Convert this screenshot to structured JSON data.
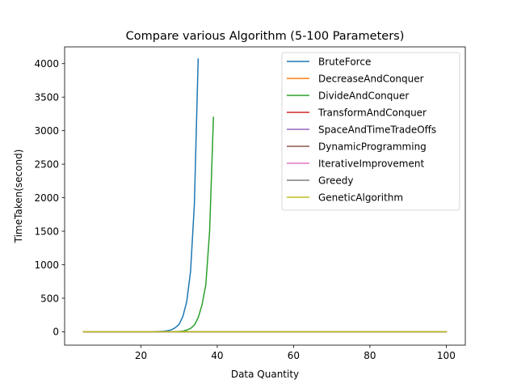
{
  "chart_data": {
    "type": "line",
    "title": "Compare various Algorithm (5-100 Parameters)",
    "xlabel": "Data Quantity",
    "ylabel": "TimeTaken(second)",
    "xlim": [
      0,
      105
    ],
    "ylim": [
      -200,
      4250
    ],
    "xticks": [
      20,
      40,
      60,
      80,
      100
    ],
    "yticks": [
      0,
      500,
      1000,
      1500,
      2000,
      2500,
      3000,
      3500,
      4000
    ],
    "grid": false,
    "legend_position": "upper right",
    "series": [
      {
        "name": "BruteForce",
        "color": "#1f77b4",
        "points": [
          [
            5,
            0
          ],
          [
            10,
            0
          ],
          [
            15,
            0
          ],
          [
            20,
            0
          ],
          [
            22,
            1
          ],
          [
            24,
            3
          ],
          [
            25,
            5
          ],
          [
            26,
            8
          ],
          [
            27,
            15
          ],
          [
            28,
            30
          ],
          [
            29,
            60
          ],
          [
            30,
            110
          ],
          [
            31,
            230
          ],
          [
            32,
            450
          ],
          [
            33,
            900
          ],
          [
            34,
            1900
          ],
          [
            35,
            4070
          ]
        ]
      },
      {
        "name": "DecreaseAndConquer",
        "color": "#ff7f0e",
        "points": [
          [
            5,
            0
          ],
          [
            20,
            0
          ],
          [
            40,
            0
          ],
          [
            60,
            0
          ],
          [
            80,
            0
          ],
          [
            100,
            0
          ]
        ]
      },
      {
        "name": "DivideAndConquer",
        "color": "#2ca02c",
        "points": [
          [
            5,
            0
          ],
          [
            10,
            0
          ],
          [
            20,
            0
          ],
          [
            25,
            0
          ],
          [
            28,
            2
          ],
          [
            30,
            5
          ],
          [
            31,
            10
          ],
          [
            32,
            25
          ],
          [
            33,
            50
          ],
          [
            34,
            100
          ],
          [
            35,
            210
          ],
          [
            36,
            400
          ],
          [
            37,
            700
          ],
          [
            38,
            1500
          ],
          [
            39,
            3200
          ]
        ]
      },
      {
        "name": "TransformAndConquer",
        "color": "#d62728",
        "points": [
          [
            5,
            0
          ],
          [
            20,
            0
          ],
          [
            40,
            0
          ],
          [
            60,
            0
          ],
          [
            80,
            0
          ],
          [
            100,
            0
          ]
        ]
      },
      {
        "name": "SpaceAndTimeTradeOffs",
        "color": "#9467bd",
        "points": [
          [
            5,
            0
          ],
          [
            20,
            0
          ],
          [
            40,
            0
          ],
          [
            60,
            0
          ],
          [
            80,
            0
          ],
          [
            100,
            0
          ]
        ]
      },
      {
        "name": "DynamicProgramming",
        "color": "#8c564b",
        "points": [
          [
            5,
            0
          ],
          [
            20,
            0
          ],
          [
            40,
            0
          ],
          [
            60,
            0
          ],
          [
            80,
            0
          ],
          [
            100,
            0
          ]
        ]
      },
      {
        "name": "IterativeImprovement",
        "color": "#e377c2",
        "points": [
          [
            5,
            0
          ],
          [
            20,
            0
          ],
          [
            40,
            0
          ],
          [
            60,
            0
          ],
          [
            80,
            0
          ],
          [
            100,
            0
          ]
        ]
      },
      {
        "name": "Greedy",
        "color": "#7f7f7f",
        "points": [
          [
            5,
            0
          ],
          [
            20,
            0
          ],
          [
            40,
            0
          ],
          [
            60,
            0
          ],
          [
            80,
            0
          ],
          [
            100,
            0
          ]
        ]
      },
      {
        "name": "GeneticAlgorithm",
        "color": "#bcbd22",
        "points": [
          [
            5,
            0
          ],
          [
            20,
            0
          ],
          [
            40,
            0
          ],
          [
            60,
            0
          ],
          [
            80,
            0
          ],
          [
            100,
            0
          ]
        ]
      }
    ]
  }
}
